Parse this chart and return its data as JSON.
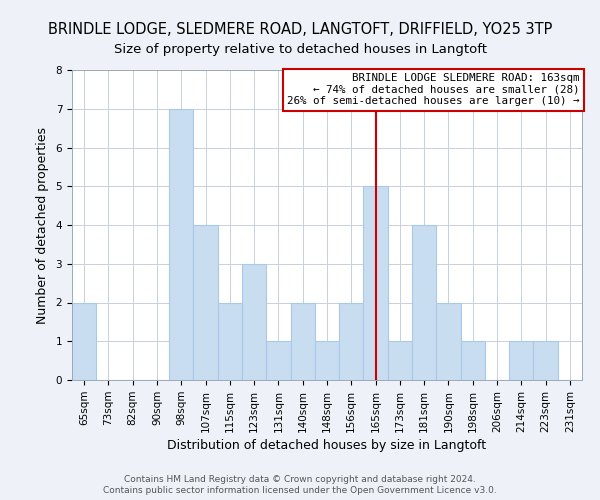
{
  "title": "BRINDLE LODGE, SLEDMERE ROAD, LANGTOFT, DRIFFIELD, YO25 3TP",
  "subtitle": "Size of property relative to detached houses in Langtoft",
  "xlabel": "Distribution of detached houses by size in Langtoft",
  "ylabel": "Number of detached properties",
  "bin_labels": [
    "65sqm",
    "73sqm",
    "82sqm",
    "90sqm",
    "98sqm",
    "107sqm",
    "115sqm",
    "123sqm",
    "131sqm",
    "140sqm",
    "148sqm",
    "156sqm",
    "165sqm",
    "173sqm",
    "181sqm",
    "190sqm",
    "198sqm",
    "206sqm",
    "214sqm",
    "223sqm",
    "231sqm"
  ],
  "bar_values": [
    2,
    0,
    0,
    0,
    7,
    4,
    2,
    3,
    1,
    2,
    1,
    2,
    5,
    1,
    4,
    2,
    1,
    0,
    1,
    1,
    0
  ],
  "bar_color": "#c8ddf0",
  "bar_edgecolor": "#aac8e8",
  "property_line_x": 12,
  "ylim": [
    0,
    8
  ],
  "yticks": [
    0,
    1,
    2,
    3,
    4,
    5,
    6,
    7,
    8
  ],
  "annotation_title": "BRINDLE LODGE SLEDMERE ROAD: 163sqm",
  "annotation_line1": "← 74% of detached houses are smaller (28)",
  "annotation_line2": "26% of semi-detached houses are larger (10) →",
  "footer1": "Contains HM Land Registry data © Crown copyright and database right 2024.",
  "footer2": "Contains public sector information licensed under the Open Government Licence v3.0.",
  "background_color": "#eef2f8",
  "plot_bg_color": "#ffffff",
  "grid_color": "#c8d0dc",
  "title_fontsize": 10.5,
  "subtitle_fontsize": 9.5,
  "tick_fontsize": 7.5,
  "xlabel_fontsize": 9,
  "ylabel_fontsize": 9,
  "annotation_box_edgecolor": "#cc0000",
  "annotation_box_facecolor": "#ffffff",
  "property_line_color": "#cc0000",
  "footer_color": "#555555",
  "footer_fontsize": 6.5
}
